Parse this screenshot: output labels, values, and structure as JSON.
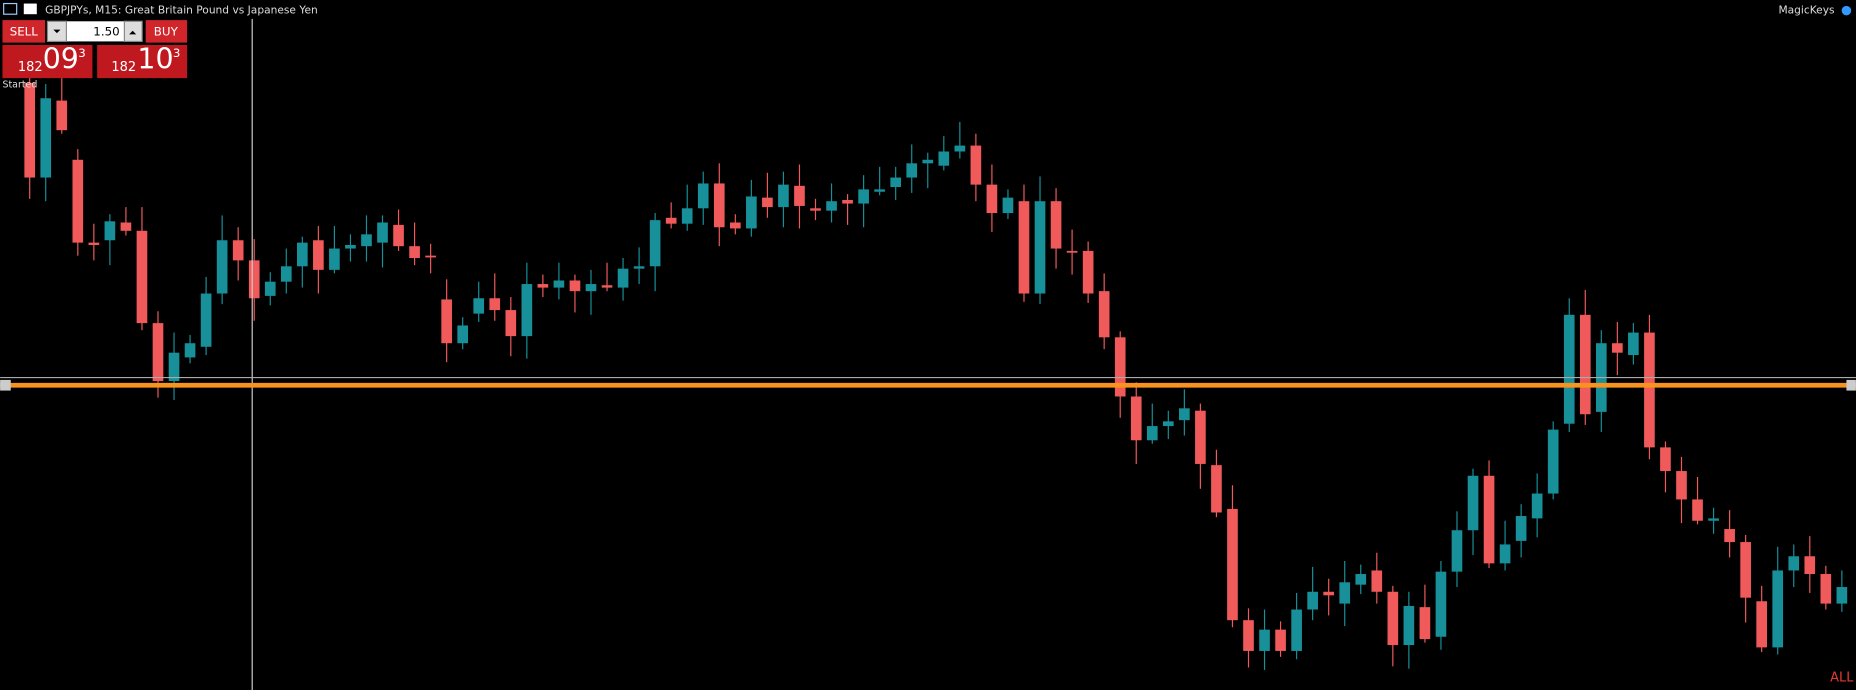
{
  "header": {
    "title": "GBPJPYs, M15:  Great Britain Pound vs Japanese Yen",
    "right": "MagicKeys"
  },
  "trade_panel": {
    "sell_label": "SELL",
    "buy_label": "BUY",
    "volume": "1.50",
    "sell_price": {
      "big": "182",
      "main": "09",
      "small": "3"
    },
    "buy_price": {
      "big": "182",
      "main": "10",
      "small": "3"
    }
  },
  "status": "Started",
  "corner_label": "ALL"
}
